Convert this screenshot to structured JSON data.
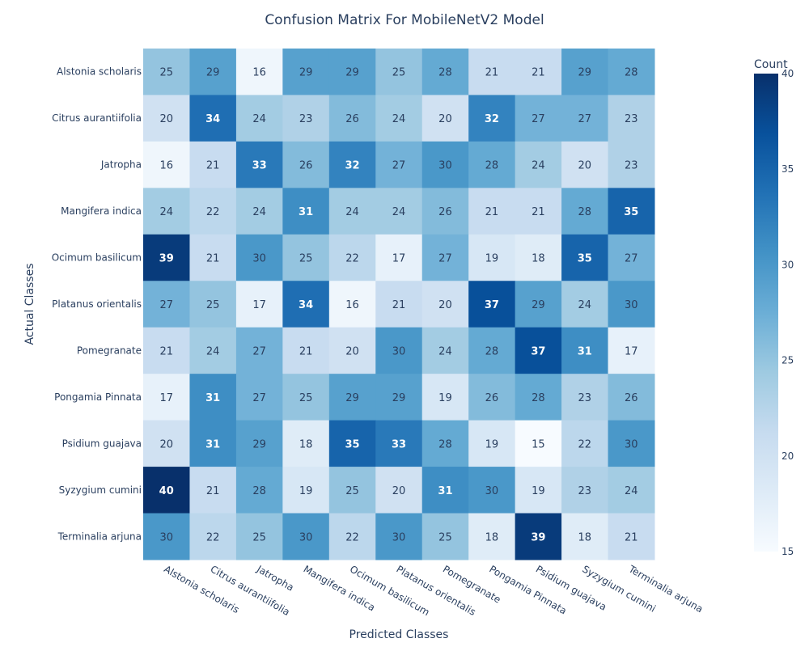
{
  "chart_data": {
    "type": "heatmap",
    "title": "Confusion Matrix For MobileNetV2 Model",
    "xlabel": "Predicted Classes",
    "ylabel": "Actual Classes",
    "x_categories": [
      "Alstonia scholaris",
      "Citrus aurantiifolia",
      "Jatropha",
      "Mangifera indica",
      "Ocimum basilicum",
      "Platanus orientalis",
      "Pomegranate",
      "Pongamia Pinnata",
      "Psidium guajava",
      "Syzygium cumini",
      "Terminalia arjuna"
    ],
    "y_categories": [
      "Alstonia scholaris",
      "Citrus aurantiifolia",
      "Jatropha",
      "Mangifera indica",
      "Ocimum basilicum",
      "Platanus orientalis",
      "Pomegranate",
      "Pongamia Pinnata",
      "Psidium guajava",
      "Syzygium cumini",
      "Terminalia arjuna"
    ],
    "values": [
      [
        25,
        29,
        16,
        29,
        29,
        25,
        28,
        21,
        21,
        29,
        28
      ],
      [
        20,
        34,
        24,
        23,
        26,
        24,
        20,
        32,
        27,
        27,
        23
      ],
      [
        16,
        21,
        33,
        26,
        32,
        27,
        30,
        28,
        24,
        20,
        23
      ],
      [
        24,
        22,
        24,
        31,
        24,
        24,
        26,
        21,
        21,
        28,
        35
      ],
      [
        39,
        21,
        30,
        25,
        22,
        17,
        27,
        19,
        18,
        35,
        27
      ],
      [
        27,
        25,
        17,
        34,
        16,
        21,
        20,
        37,
        29,
        24,
        30
      ],
      [
        21,
        24,
        27,
        21,
        20,
        30,
        24,
        28,
        37,
        31,
        17
      ],
      [
        17,
        31,
        27,
        25,
        29,
        29,
        19,
        26,
        28,
        23,
        26
      ],
      [
        20,
        31,
        29,
        18,
        35,
        33,
        28,
        19,
        15,
        22,
        30
      ],
      [
        40,
        21,
        28,
        19,
        25,
        20,
        31,
        30,
        19,
        23,
        24
      ],
      [
        30,
        22,
        25,
        30,
        22,
        30,
        25,
        18,
        39,
        18,
        21
      ]
    ],
    "colorscale": "Blues",
    "zmin": 15,
    "zmax": 40,
    "colorbar": {
      "title": "Count",
      "ticks": [
        15,
        20,
        25,
        30,
        35,
        40
      ]
    }
  }
}
